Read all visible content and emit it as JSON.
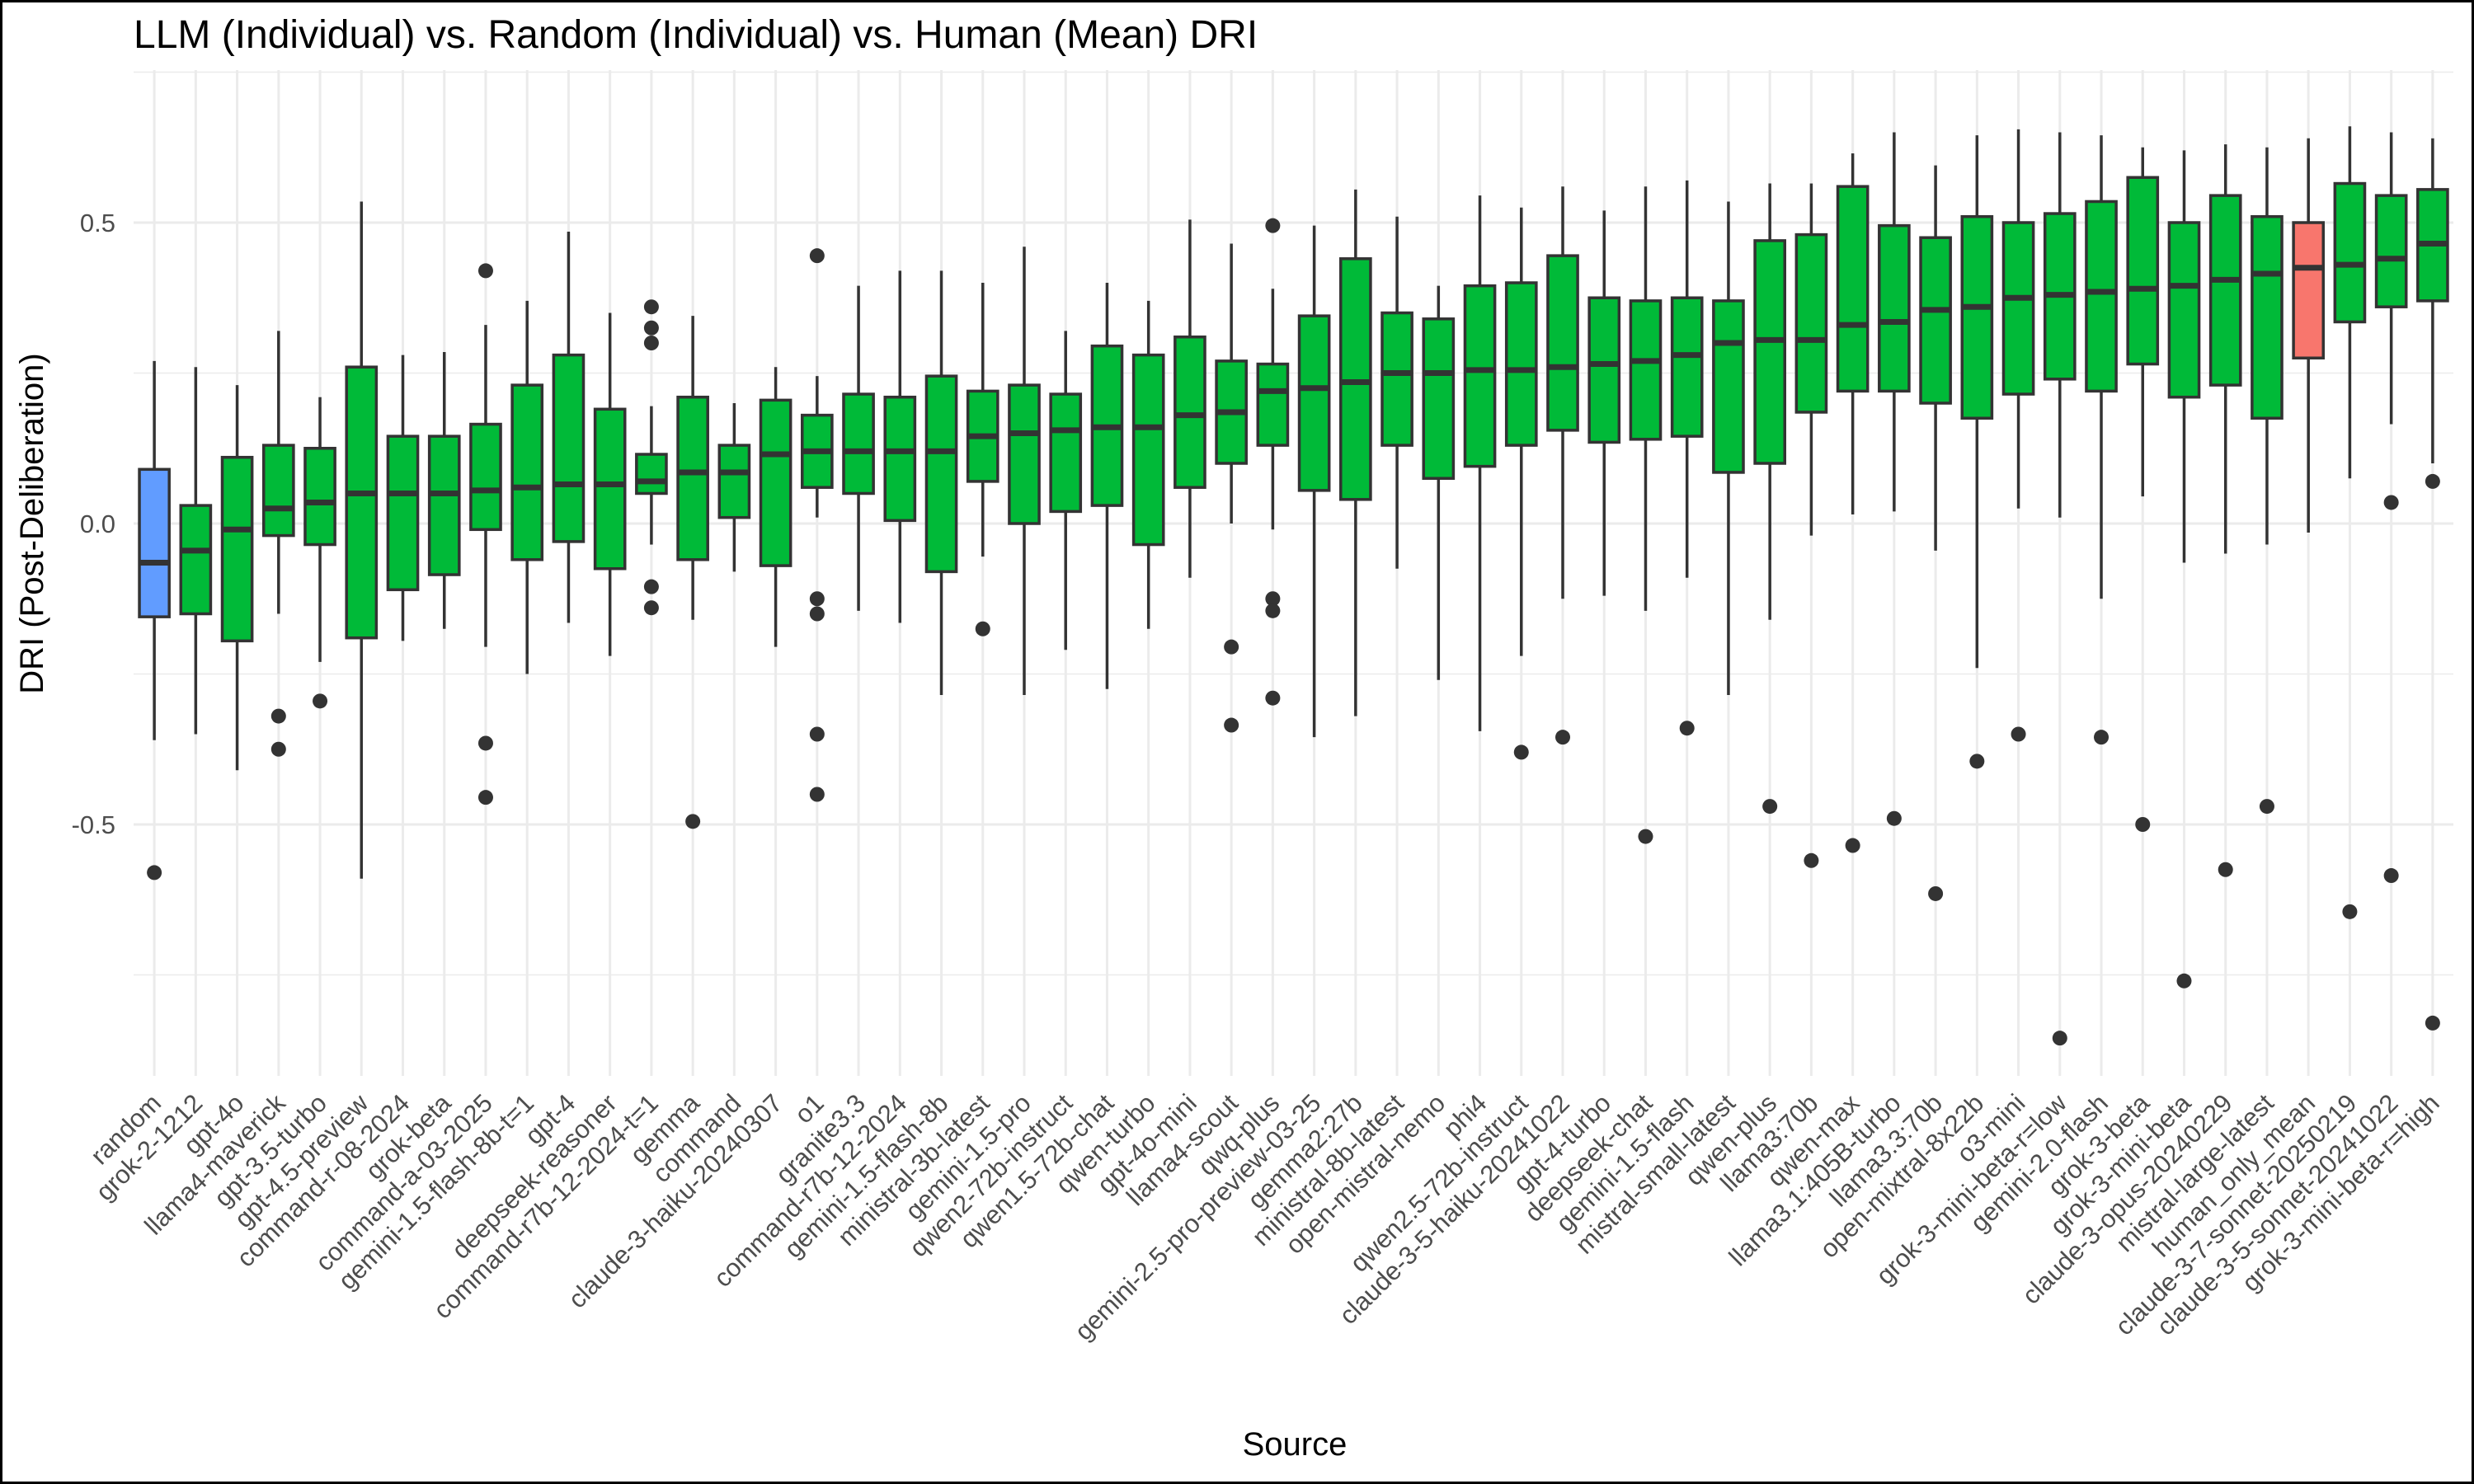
{
  "chart_data": {
    "type": "boxplot",
    "title": "LLM (Individual) vs. Random (Individual) vs. Human (Mean) DRI",
    "xlabel": "Source",
    "ylabel": "DRI (Post-Deliberation)",
    "ylim": [
      -0.9,
      0.75
    ],
    "yticks": [
      -0.5,
      0.0,
      0.5
    ],
    "ytick_labels": [
      "-0.5",
      "0.0",
      "0.5"
    ],
    "grid": true,
    "legend": "none",
    "colors": {
      "random": "#619CFF",
      "llm": "#00BA38",
      "human": "#F8766D",
      "border": "#333333",
      "grid": "#ebebeb"
    },
    "categories": [
      {
        "name": "random",
        "group": "random",
        "lo": -0.36,
        "q1": -0.155,
        "med": -0.065,
        "q3": 0.09,
        "hi": 0.27,
        "outliers": [
          -0.58
        ]
      },
      {
        "name": "grok-2-1212",
        "group": "llm",
        "lo": -0.35,
        "q1": -0.15,
        "med": -0.045,
        "q3": 0.03,
        "hi": 0.26,
        "outliers": []
      },
      {
        "name": "gpt-4o",
        "group": "llm",
        "lo": -0.41,
        "q1": -0.195,
        "med": -0.01,
        "q3": 0.11,
        "hi": 0.23,
        "outliers": []
      },
      {
        "name": "llama4-maverick",
        "group": "llm",
        "lo": -0.15,
        "q1": -0.02,
        "med": 0.025,
        "q3": 0.13,
        "hi": 0.32,
        "outliers": [
          -0.32,
          -0.375
        ]
      },
      {
        "name": "gpt-3.5-turbo",
        "group": "llm",
        "lo": -0.23,
        "q1": -0.035,
        "med": 0.035,
        "q3": 0.125,
        "hi": 0.21,
        "outliers": [
          -0.295
        ]
      },
      {
        "name": "gpt-4.5-preview",
        "group": "llm",
        "lo": -0.59,
        "q1": -0.19,
        "med": 0.05,
        "q3": 0.26,
        "hi": 0.535,
        "outliers": []
      },
      {
        "name": "command-r-08-2024",
        "group": "llm",
        "lo": -0.195,
        "q1": -0.11,
        "med": 0.05,
        "q3": 0.145,
        "hi": 0.28,
        "outliers": []
      },
      {
        "name": "grok-beta",
        "group": "llm",
        "lo": -0.175,
        "q1": -0.085,
        "med": 0.05,
        "q3": 0.145,
        "hi": 0.285,
        "outliers": []
      },
      {
        "name": "command-a-03-2025",
        "group": "llm",
        "lo": -0.205,
        "q1": -0.01,
        "med": 0.055,
        "q3": 0.165,
        "hi": 0.33,
        "outliers": [
          0.42,
          -0.365,
          -0.455
        ]
      },
      {
        "name": "gemini-1.5-flash-8b-t=1",
        "group": "llm",
        "lo": -0.25,
        "q1": -0.06,
        "med": 0.06,
        "q3": 0.23,
        "hi": 0.37,
        "outliers": []
      },
      {
        "name": "gpt-4",
        "group": "llm",
        "lo": -0.165,
        "q1": -0.03,
        "med": 0.065,
        "q3": 0.28,
        "hi": 0.485,
        "outliers": []
      },
      {
        "name": "deepseek-reasoner",
        "group": "llm",
        "lo": -0.22,
        "q1": -0.075,
        "med": 0.065,
        "q3": 0.19,
        "hi": 0.35,
        "outliers": []
      },
      {
        "name": "command-r7b-12-2024-t=1",
        "group": "llm",
        "lo": -0.035,
        "q1": 0.05,
        "med": 0.07,
        "q3": 0.115,
        "hi": 0.195,
        "outliers": [
          0.36,
          0.325,
          0.3,
          -0.105,
          -0.14
        ]
      },
      {
        "name": "gemma",
        "group": "llm",
        "lo": -0.16,
        "q1": -0.06,
        "med": 0.085,
        "q3": 0.21,
        "hi": 0.345,
        "outliers": [
          -0.495
        ]
      },
      {
        "name": "command",
        "group": "llm",
        "lo": -0.08,
        "q1": 0.01,
        "med": 0.085,
        "q3": 0.13,
        "hi": 0.2,
        "outliers": []
      },
      {
        "name": "claude-3-haiku-20240307",
        "group": "llm",
        "lo": -0.205,
        "q1": -0.07,
        "med": 0.115,
        "q3": 0.205,
        "hi": 0.26,
        "outliers": []
      },
      {
        "name": "o1",
        "group": "llm",
        "lo": 0.01,
        "q1": 0.06,
        "med": 0.12,
        "q3": 0.18,
        "hi": 0.245,
        "outliers": [
          0.445,
          -0.125,
          -0.15,
          -0.35,
          -0.45
        ]
      },
      {
        "name": "granite3.3",
        "group": "llm",
        "lo": -0.145,
        "q1": 0.05,
        "med": 0.12,
        "q3": 0.215,
        "hi": 0.395,
        "outliers": []
      },
      {
        "name": "command-r7b-12-2024",
        "group": "llm",
        "lo": -0.165,
        "q1": 0.005,
        "med": 0.12,
        "q3": 0.21,
        "hi": 0.42,
        "outliers": []
      },
      {
        "name": "gemini-1.5-flash-8b",
        "group": "llm",
        "lo": -0.285,
        "q1": -0.08,
        "med": 0.12,
        "q3": 0.245,
        "hi": 0.42,
        "outliers": []
      },
      {
        "name": "ministral-3b-latest",
        "group": "llm",
        "lo": -0.055,
        "q1": 0.07,
        "med": 0.145,
        "q3": 0.22,
        "hi": 0.4,
        "outliers": [
          -0.175
        ]
      },
      {
        "name": "gemini-1.5-pro",
        "group": "llm",
        "lo": -0.285,
        "q1": 0.0,
        "med": 0.15,
        "q3": 0.23,
        "hi": 0.46,
        "outliers": []
      },
      {
        "name": "qwen2-72b-instruct",
        "group": "llm",
        "lo": -0.21,
        "q1": 0.02,
        "med": 0.155,
        "q3": 0.215,
        "hi": 0.32,
        "outliers": []
      },
      {
        "name": "qwen1.5-72b-chat",
        "group": "llm",
        "lo": -0.275,
        "q1": 0.03,
        "med": 0.16,
        "q3": 0.295,
        "hi": 0.4,
        "outliers": []
      },
      {
        "name": "qwen-turbo",
        "group": "llm",
        "lo": -0.175,
        "q1": -0.035,
        "med": 0.16,
        "q3": 0.28,
        "hi": 0.37,
        "outliers": []
      },
      {
        "name": "gpt-4o-mini",
        "group": "llm",
        "lo": -0.09,
        "q1": 0.06,
        "med": 0.18,
        "q3": 0.31,
        "hi": 0.505,
        "outliers": []
      },
      {
        "name": "llama4-scout",
        "group": "llm",
        "lo": 0.0,
        "q1": 0.1,
        "med": 0.185,
        "q3": 0.27,
        "hi": 0.465,
        "outliers": [
          -0.205,
          -0.335
        ]
      },
      {
        "name": "qwq-plus",
        "group": "llm",
        "lo": -0.01,
        "q1": 0.13,
        "med": 0.22,
        "q3": 0.265,
        "hi": 0.39,
        "outliers": [
          0.495,
          -0.125,
          -0.145,
          -0.29
        ]
      },
      {
        "name": "gemini-2.5-pro-preview-03-25",
        "group": "llm",
        "lo": -0.355,
        "q1": 0.055,
        "med": 0.225,
        "q3": 0.345,
        "hi": 0.495,
        "outliers": []
      },
      {
        "name": "gemma2:27b",
        "group": "llm",
        "lo": -0.32,
        "q1": 0.04,
        "med": 0.235,
        "q3": 0.44,
        "hi": 0.555,
        "outliers": []
      },
      {
        "name": "ministral-8b-latest",
        "group": "llm",
        "lo": -0.075,
        "q1": 0.13,
        "med": 0.25,
        "q3": 0.35,
        "hi": 0.51,
        "outliers": []
      },
      {
        "name": "open-mistral-nemo",
        "group": "llm",
        "lo": -0.26,
        "q1": 0.075,
        "med": 0.25,
        "q3": 0.34,
        "hi": 0.395,
        "outliers": []
      },
      {
        "name": "phi4",
        "group": "llm",
        "lo": -0.345,
        "q1": 0.095,
        "med": 0.255,
        "q3": 0.395,
        "hi": 0.545,
        "outliers": []
      },
      {
        "name": "qwen2.5-72b-instruct",
        "group": "llm",
        "lo": -0.22,
        "q1": 0.13,
        "med": 0.255,
        "q3": 0.4,
        "hi": 0.525,
        "outliers": [
          -0.38
        ]
      },
      {
        "name": "claude-3-5-haiku-20241022",
        "group": "llm",
        "lo": -0.125,
        "q1": 0.155,
        "med": 0.26,
        "q3": 0.445,
        "hi": 0.56,
        "outliers": [
          -0.355
        ]
      },
      {
        "name": "gpt-4-turbo",
        "group": "llm",
        "lo": -0.12,
        "q1": 0.135,
        "med": 0.265,
        "q3": 0.375,
        "hi": 0.52,
        "outliers": []
      },
      {
        "name": "deepseek-chat",
        "group": "llm",
        "lo": -0.145,
        "q1": 0.14,
        "med": 0.27,
        "q3": 0.37,
        "hi": 0.56,
        "outliers": [
          -0.52
        ]
      },
      {
        "name": "gemini-1.5-flash",
        "group": "llm",
        "lo": -0.09,
        "q1": 0.145,
        "med": 0.28,
        "q3": 0.375,
        "hi": 0.57,
        "outliers": [
          -0.34
        ]
      },
      {
        "name": "mistral-small-latest",
        "group": "llm",
        "lo": -0.285,
        "q1": 0.085,
        "med": 0.3,
        "q3": 0.37,
        "hi": 0.535,
        "outliers": []
      },
      {
        "name": "qwen-plus",
        "group": "llm",
        "lo": -0.16,
        "q1": 0.1,
        "med": 0.305,
        "q3": 0.47,
        "hi": 0.565,
        "outliers": [
          -0.47
        ]
      },
      {
        "name": "llama3:70b",
        "group": "llm",
        "lo": -0.02,
        "q1": 0.185,
        "med": 0.305,
        "q3": 0.48,
        "hi": 0.565,
        "outliers": [
          -0.56
        ]
      },
      {
        "name": "qwen-max",
        "group": "llm",
        "lo": 0.015,
        "q1": 0.22,
        "med": 0.33,
        "q3": 0.56,
        "hi": 0.615,
        "outliers": [
          -0.535
        ]
      },
      {
        "name": "llama3.1:405B-turbo",
        "group": "llm",
        "lo": 0.02,
        "q1": 0.22,
        "med": 0.335,
        "q3": 0.495,
        "hi": 0.65,
        "outliers": [
          -0.49
        ]
      },
      {
        "name": "llama3.3:70b",
        "group": "llm",
        "lo": -0.045,
        "q1": 0.2,
        "med": 0.355,
        "q3": 0.475,
        "hi": 0.595,
        "outliers": [
          -0.615
        ]
      },
      {
        "name": "open-mixtral-8x22b",
        "group": "llm",
        "lo": -0.24,
        "q1": 0.175,
        "med": 0.36,
        "q3": 0.51,
        "hi": 0.645,
        "outliers": [
          -0.395
        ]
      },
      {
        "name": "o3-mini",
        "group": "llm",
        "lo": 0.025,
        "q1": 0.215,
        "med": 0.375,
        "q3": 0.5,
        "hi": 0.655,
        "outliers": [
          -0.35
        ]
      },
      {
        "name": "grok-3-mini-beta-r=low",
        "group": "llm",
        "lo": 0.01,
        "q1": 0.24,
        "med": 0.38,
        "q3": 0.515,
        "hi": 0.65,
        "outliers": [
          -0.855
        ]
      },
      {
        "name": "gemini-2.0-flash",
        "group": "llm",
        "lo": -0.125,
        "q1": 0.22,
        "med": 0.385,
        "q3": 0.535,
        "hi": 0.645,
        "outliers": [
          -0.355
        ]
      },
      {
        "name": "grok-3-beta",
        "group": "llm",
        "lo": 0.045,
        "q1": 0.265,
        "med": 0.39,
        "q3": 0.575,
        "hi": 0.625,
        "outliers": [
          -0.5
        ]
      },
      {
        "name": "grok-3-mini-beta",
        "group": "llm",
        "lo": -0.065,
        "q1": 0.21,
        "med": 0.395,
        "q3": 0.5,
        "hi": 0.62,
        "outliers": [
          -0.76
        ]
      },
      {
        "name": "claude-3-opus-20240229",
        "group": "llm",
        "lo": -0.05,
        "q1": 0.23,
        "med": 0.405,
        "q3": 0.545,
        "hi": 0.63,
        "outliers": [
          -0.575
        ]
      },
      {
        "name": "mistral-large-latest",
        "group": "llm",
        "lo": -0.035,
        "q1": 0.175,
        "med": 0.415,
        "q3": 0.51,
        "hi": 0.625,
        "outliers": [
          -0.47
        ]
      },
      {
        "name": "human_only_mean",
        "group": "human",
        "lo": -0.015,
        "q1": 0.275,
        "med": 0.425,
        "q3": 0.5,
        "hi": 0.64,
        "outliers": []
      },
      {
        "name": "claude-3-7-sonnet-20250219",
        "group": "llm",
        "lo": 0.075,
        "q1": 0.335,
        "med": 0.43,
        "q3": 0.565,
        "hi": 0.66,
        "outliers": [
          -0.645
        ]
      },
      {
        "name": "claude-3-5-sonnet-20241022",
        "group": "llm",
        "lo": 0.165,
        "q1": 0.36,
        "med": 0.44,
        "q3": 0.545,
        "hi": 0.65,
        "outliers": [
          0.035,
          -0.585
        ]
      },
      {
        "name": "grok-3-mini-beta-r=high",
        "group": "llm",
        "lo": 0.1,
        "q1": 0.37,
        "med": 0.465,
        "q3": 0.555,
        "hi": 0.64,
        "outliers": [
          0.07,
          -0.83
        ]
      }
    ]
  }
}
